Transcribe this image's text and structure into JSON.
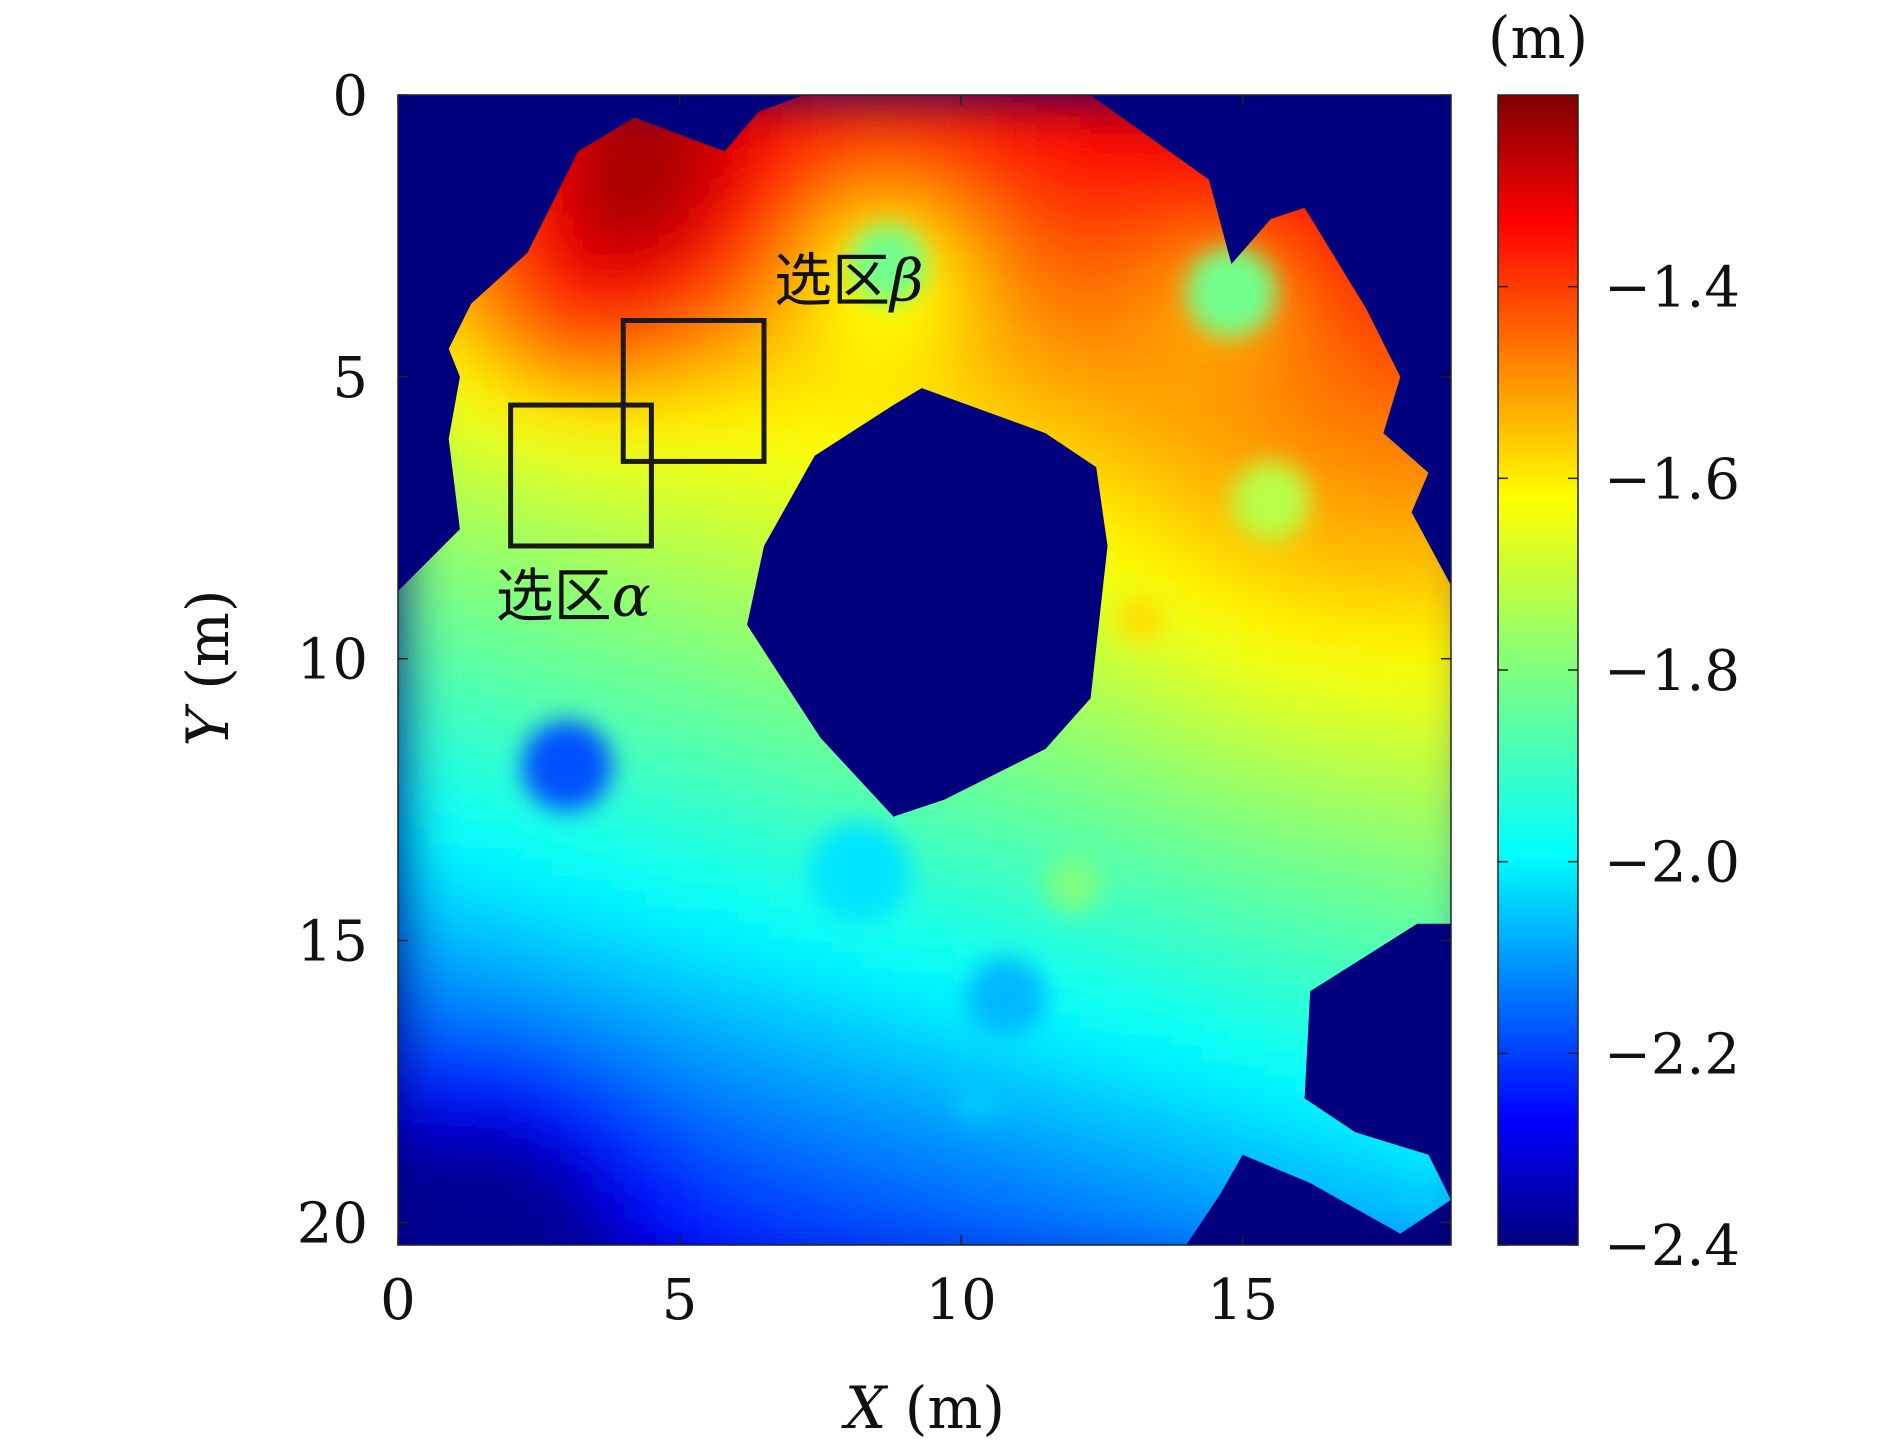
{
  "chart_data": {
    "type": "heatmap",
    "title": "",
    "xlabel_var": "X",
    "xlabel_unit": " (m)",
    "ylabel_var": "Y",
    "ylabel_unit": " (m)",
    "xlim": [
      0,
      18.7
    ],
    "ylim": [
      0,
      20.4
    ],
    "y_axis_inverted": true,
    "x_ticks": [
      "0",
      "5",
      "10",
      "15"
    ],
    "x_tick_values": [
      0,
      5,
      10,
      15
    ],
    "y_ticks": [
      "0",
      "5",
      "10",
      "15",
      "20"
    ],
    "y_tick_values": [
      0,
      5,
      10,
      15,
      20
    ],
    "colorbar": {
      "unit_label": "(m)",
      "range": [
        -2.4,
        -1.2
      ],
      "colormap": "jet",
      "ticks": [
        "−1.4",
        "−1.6",
        "−1.8",
        "−2.0",
        "−2.2",
        "−2.4"
      ],
      "tick_values": [
        -1.4,
        -1.6,
        -1.8,
        -2.0,
        -2.2,
        -2.4
      ]
    },
    "background_color": "#00007f",
    "regions": [
      {
        "name_prefix": "选区",
        "name_symbol": "α",
        "x_range": [
          2.0,
          4.5
        ],
        "y_range": [
          5.5,
          8.0
        ]
      },
      {
        "name_prefix": "选区",
        "name_symbol": "β",
        "x_range": [
          4.0,
          6.5
        ],
        "y_range": [
          4.0,
          6.5
        ]
      }
    ],
    "trend": "Elevation is highest (about −1.3 m) at the top-left near (4, 2) and decreases toward the bottom-left (about −2.3 m); an empty circular region is centered near (9.5, 9)."
  }
}
